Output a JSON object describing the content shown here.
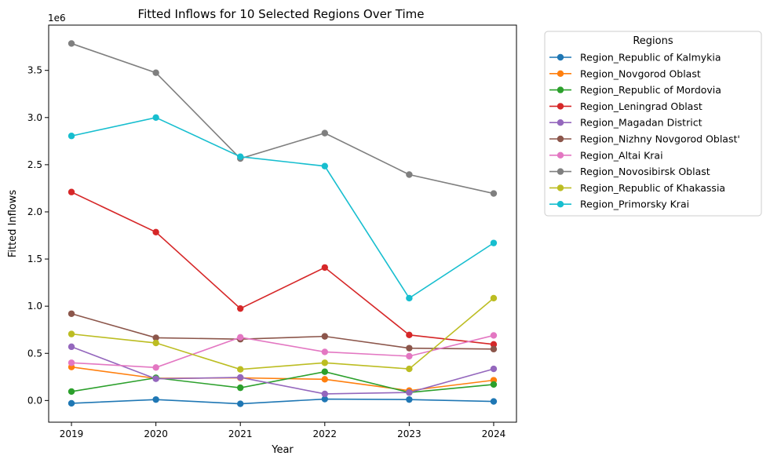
{
  "chart_data": {
    "type": "line",
    "title": "Fitted Inflows for 10 Selected Regions Over Time",
    "xlabel": "Year",
    "ylabel": "Fitted Inflows",
    "y_offset_label": "1e6",
    "x": [
      2019,
      2020,
      2021,
      2022,
      2023,
      2024
    ],
    "x_tick_labels": [
      "2019",
      "2020",
      "2021",
      "2022",
      "2023",
      "2024"
    ],
    "y_ticks": [
      0,
      500000,
      1000000,
      1500000,
      2000000,
      2500000,
      3000000,
      3500000
    ],
    "y_tick_labels": [
      "0.0",
      "0.5",
      "1.0",
      "1.5",
      "2.0",
      "2.5",
      "3.0",
      "3.5"
    ],
    "xlim": [
      2018.73,
      2024.27
    ],
    "ylim": [
      -230000,
      3980000
    ],
    "grid": false,
    "legend": {
      "title": "Regions",
      "position": "outside-right"
    },
    "series": [
      {
        "name": "Region_Republic of Kalmykia",
        "color": "#1f77b4",
        "values": [
          -30000,
          10000,
          -35000,
          15000,
          10000,
          -10000
        ]
      },
      {
        "name": "Region_Novgorod Oblast",
        "color": "#ff7f0e",
        "values": [
          355000,
          235000,
          240000,
          225000,
          105000,
          215000
        ]
      },
      {
        "name": "Region_Republic of Mordovia",
        "color": "#2ca02c",
        "values": [
          95000,
          240000,
          135000,
          305000,
          85000,
          170000
        ]
      },
      {
        "name": "Region_Leningrad Oblast",
        "color": "#d62728",
        "values": [
          2210000,
          1785000,
          975000,
          1410000,
          695000,
          595000
        ]
      },
      {
        "name": "Region_Magadan District",
        "color": "#9467bd",
        "values": [
          570000,
          230000,
          245000,
          70000,
          85000,
          335000
        ]
      },
      {
        "name": "Region_Nizhny Novgorod Oblast'",
        "color": "#8c564b",
        "values": [
          920000,
          665000,
          650000,
          680000,
          555000,
          545000
        ]
      },
      {
        "name": "Region_Altai Krai",
        "color": "#e377c2",
        "values": [
          400000,
          350000,
          670000,
          515000,
          470000,
          690000
        ]
      },
      {
        "name": "Region_Novosibirsk Oblast",
        "color": "#7f7f7f",
        "values": [
          3785000,
          3475000,
          2565000,
          2835000,
          2395000,
          2195000
        ]
      },
      {
        "name": "Region_Republic of Khakassia",
        "color": "#bcbd22",
        "values": [
          705000,
          610000,
          330000,
          400000,
          335000,
          1085000
        ]
      },
      {
        "name": "Region_Primorsky Krai",
        "color": "#17becf",
        "values": [
          2805000,
          3000000,
          2585000,
          2485000,
          1085000,
          1670000
        ]
      }
    ]
  }
}
